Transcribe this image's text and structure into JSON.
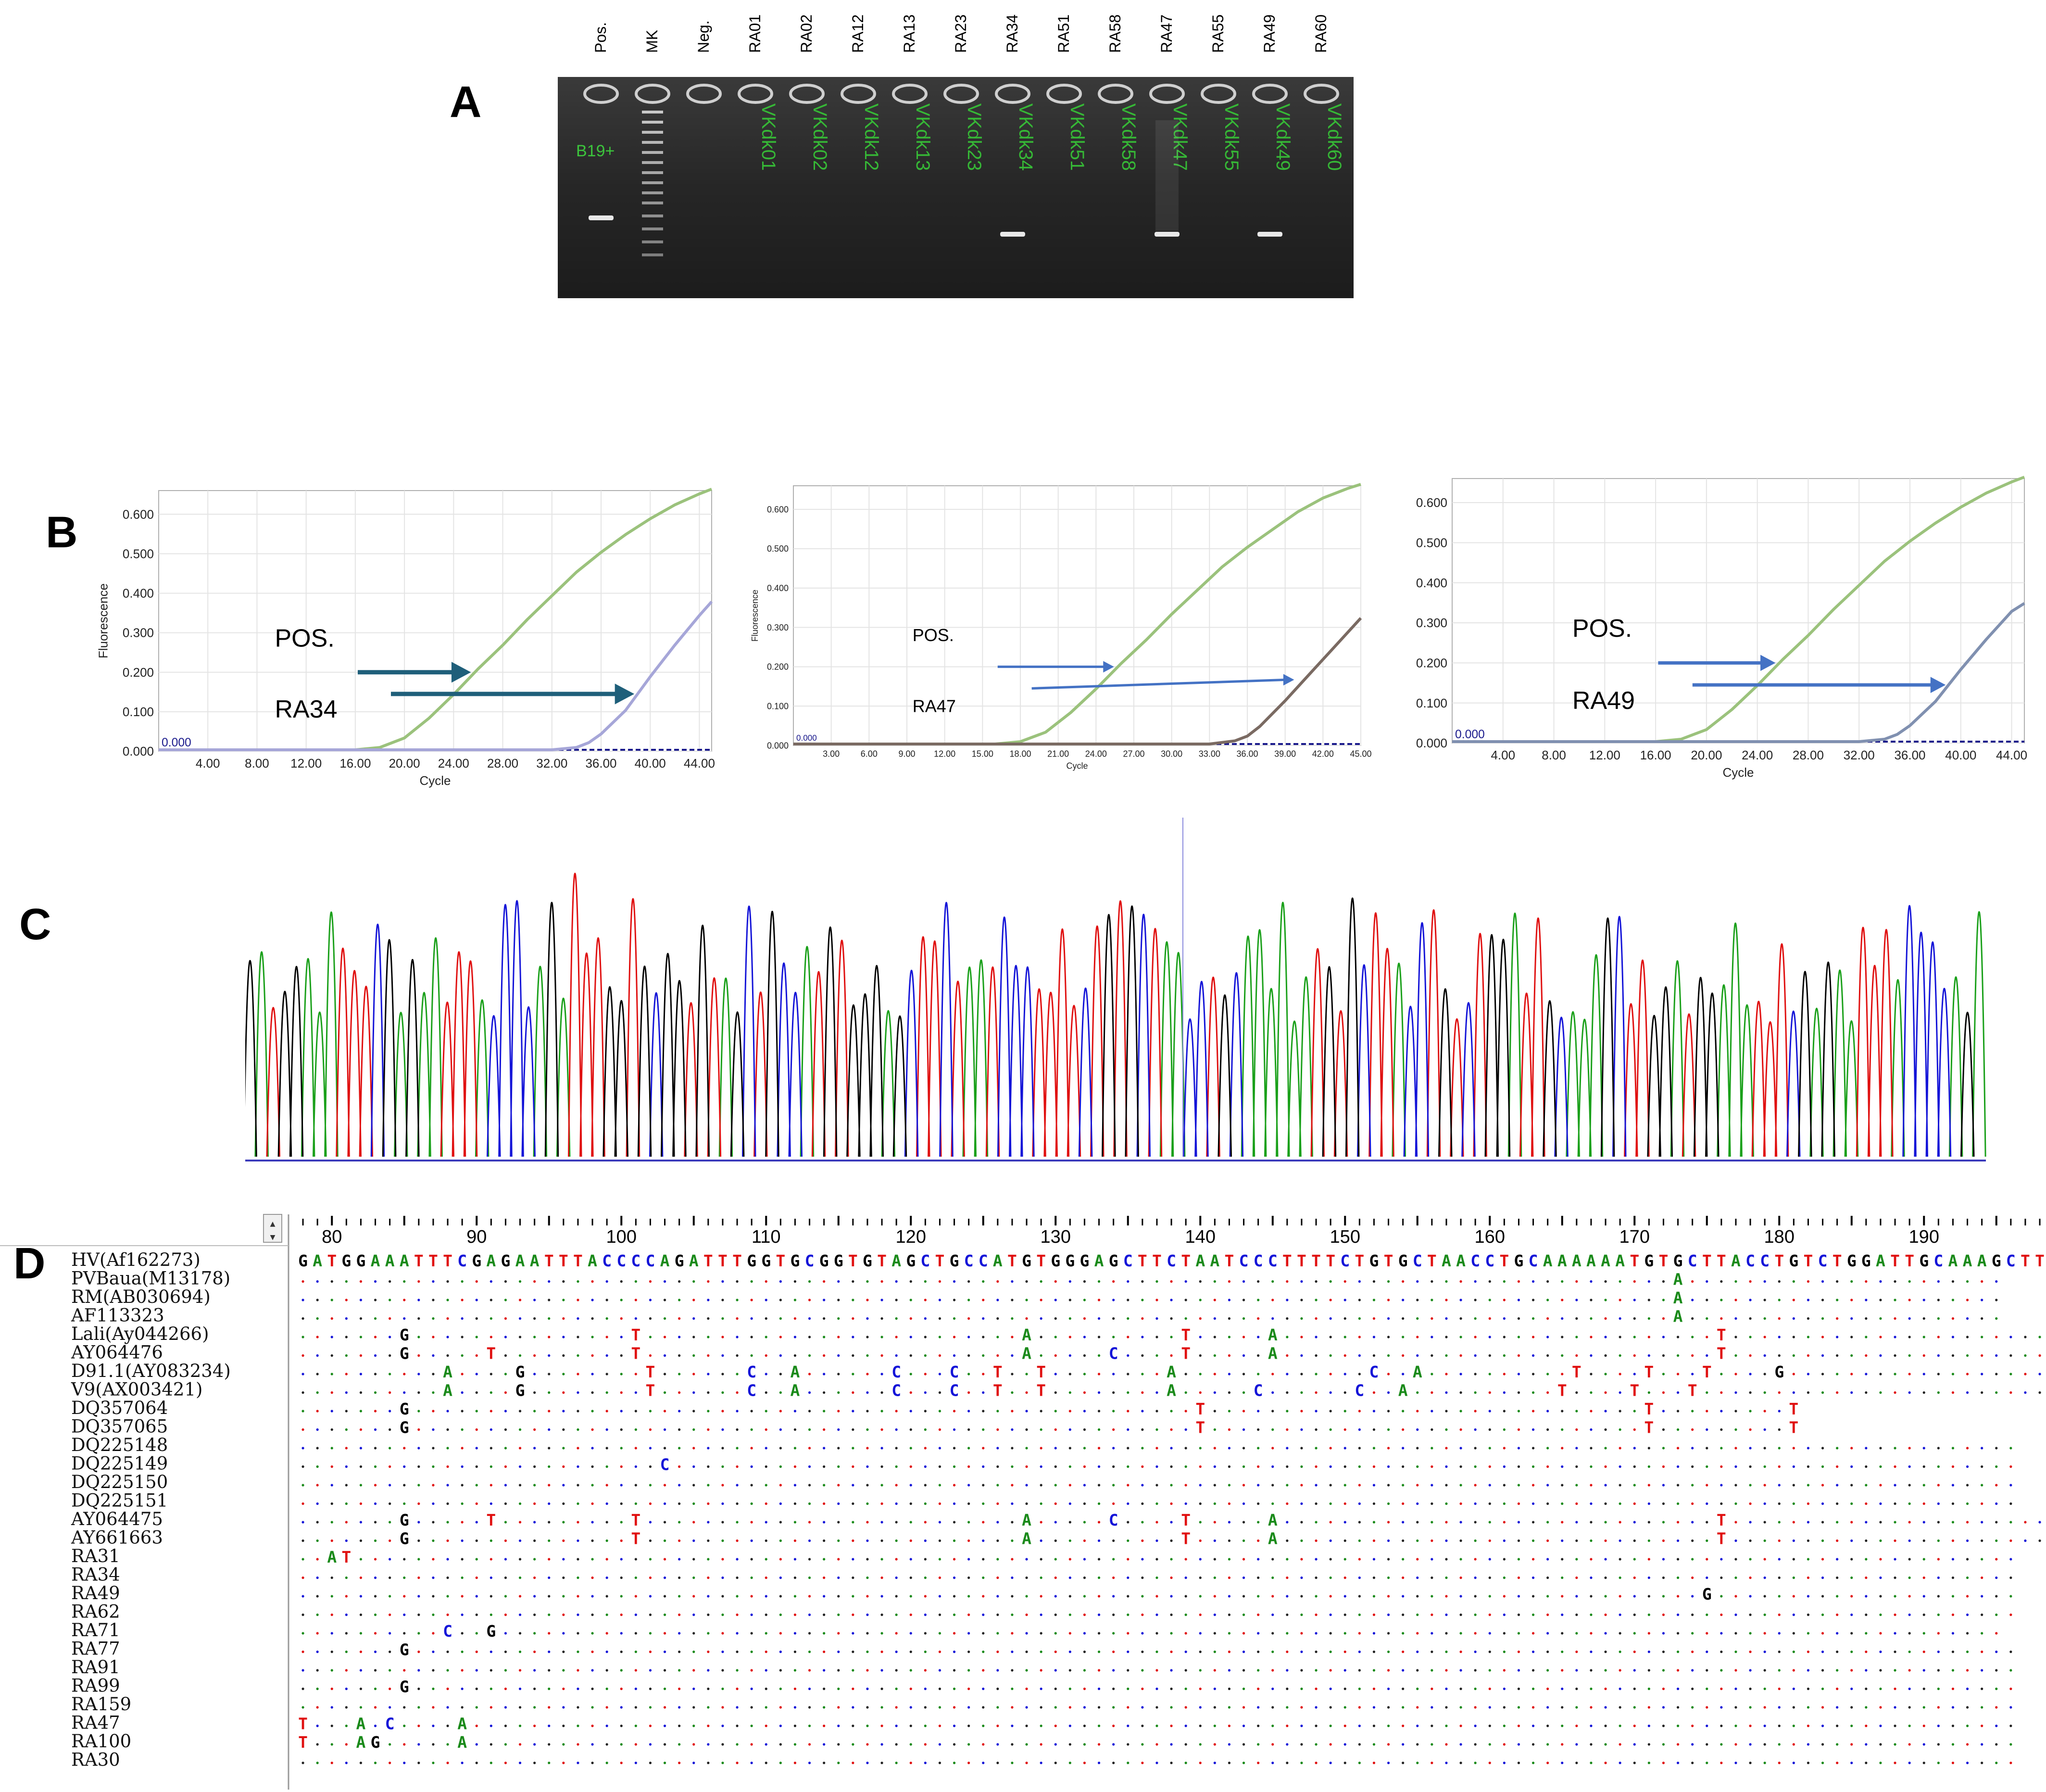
{
  "panels": {
    "a": "A",
    "b": "B",
    "c": "C",
    "d": "D"
  },
  "gel": {
    "lanes": [
      "Pos.",
      "MK",
      "Neg.",
      "RA01",
      "RA02",
      "RA12",
      "RA13",
      "RA23",
      "RA34",
      "RA51",
      "RA58",
      "RA47",
      "RA55",
      "RA49",
      "RA60"
    ],
    "well_labels": [
      "B19+",
      "",
      "",
      "VKdk01",
      "VKdk02",
      "VKdk12",
      "VKdk13",
      "VKdk23",
      "VKdk34",
      "VKdk51",
      "VKdk58",
      "VKdk47",
      "VKdk55",
      "VKdk49",
      "VKdk60"
    ],
    "bands": [
      "Pos.",
      "RA34",
      "RA47",
      "RA49"
    ]
  },
  "chart_data": [
    {
      "type": "line",
      "title": "",
      "xlabel": "Cycle",
      "ylabel": "Fluorescence",
      "x_ticks": [
        "4.00",
        "8.00",
        "12.00",
        "16.00",
        "20.00",
        "24.00",
        "28.00",
        "32.00",
        "36.00",
        "40.00",
        "44.00"
      ],
      "y_ticks": [
        "0.000",
        "0.100",
        "0.200",
        "0.300",
        "0.400",
        "0.500",
        "0.600"
      ],
      "xlim": [
        0,
        45
      ],
      "ylim": [
        0,
        0.66
      ],
      "threshold_label": "0.000",
      "series": [
        {
          "name": "POS.",
          "color": "#9bc27c",
          "x": [
            0,
            16,
            18,
            20,
            22,
            24,
            26,
            28,
            30,
            32,
            34,
            36,
            38,
            40,
            42,
            44,
            45
          ],
          "y": [
            0,
            0,
            0.006,
            0.03,
            0.08,
            0.14,
            0.205,
            0.265,
            0.33,
            0.39,
            0.45,
            0.5,
            0.545,
            0.585,
            0.62,
            0.648,
            0.66
          ]
        },
        {
          "name": "RA34",
          "color": "#a6a6d8",
          "x": [
            0,
            32,
            34,
            35,
            36,
            38,
            40,
            42,
            44,
            45
          ],
          "y": [
            0,
            0,
            0.006,
            0.018,
            0.04,
            0.1,
            0.185,
            0.265,
            0.34,
            0.375
          ]
        }
      ],
      "annotations": [
        "POS.",
        "RA34"
      ],
      "arrow_color": "#1f5f7a"
    },
    {
      "type": "line",
      "title": "",
      "xlabel": "Cycle",
      "ylabel": "Fluorescence",
      "x_ticks": [
        "3.00",
        "6.00",
        "9.00",
        "12.00",
        "15.00",
        "18.00",
        "21.00",
        "24.00",
        "27.00",
        "30.00",
        "33.00",
        "36.00",
        "39.00",
        "42.00",
        "45.00"
      ],
      "y_ticks": [
        "0.000",
        "0.100",
        "0.200",
        "0.300",
        "0.400",
        "0.500",
        "0.600"
      ],
      "xlim": [
        0,
        45
      ],
      "ylim": [
        0,
        0.66
      ],
      "threshold_label": "0.000",
      "series": [
        {
          "name": "POS.",
          "color": "#9bc27c",
          "x": [
            0,
            16,
            18,
            20,
            22,
            24,
            26,
            28,
            30,
            32,
            34,
            36,
            38,
            40,
            42,
            44,
            45
          ],
          "y": [
            0,
            0,
            0.006,
            0.03,
            0.08,
            0.14,
            0.205,
            0.265,
            0.33,
            0.39,
            0.45,
            0.5,
            0.545,
            0.59,
            0.625,
            0.65,
            0.66
          ]
        },
        {
          "name": "RA47",
          "color": "#7a6a62",
          "x": [
            0,
            33,
            35,
            36,
            37,
            39,
            41,
            43,
            45
          ],
          "y": [
            0,
            0,
            0.008,
            0.02,
            0.045,
            0.11,
            0.18,
            0.25,
            0.32
          ]
        }
      ],
      "annotations": [
        "POS.",
        "RA47"
      ],
      "arrow_color": "#4472c4"
    },
    {
      "type": "line",
      "title": "",
      "xlabel": "Cycle",
      "ylabel": "",
      "x_ticks": [
        "4.00",
        "8.00",
        "12.00",
        "16.00",
        "20.00",
        "24.00",
        "28.00",
        "32.00",
        "36.00",
        "40.00",
        "44.00"
      ],
      "y_ticks": [
        "0.000",
        "0.100",
        "0.200",
        "0.300",
        "0.400",
        "0.500",
        "0.600"
      ],
      "xlim": [
        0,
        45
      ],
      "ylim": [
        0,
        0.66
      ],
      "threshold_label": "0.000",
      "series": [
        {
          "name": "POS.",
          "color": "#9bc27c",
          "x": [
            0,
            16,
            18,
            20,
            22,
            24,
            26,
            28,
            30,
            32,
            34,
            36,
            38,
            40,
            42,
            44,
            45
          ],
          "y": [
            0,
            0,
            0.006,
            0.03,
            0.08,
            0.14,
            0.205,
            0.265,
            0.33,
            0.39,
            0.45,
            0.5,
            0.545,
            0.585,
            0.62,
            0.648,
            0.66
          ]
        },
        {
          "name": "RA49",
          "color": "#8090b0",
          "x": [
            0,
            32,
            34,
            35,
            36,
            38,
            40,
            42,
            44,
            45
          ],
          "y": [
            0,
            0,
            0.006,
            0.018,
            0.04,
            0.1,
            0.18,
            0.255,
            0.325,
            0.345
          ]
        }
      ],
      "annotations": [
        "POS.",
        "RA49"
      ],
      "arrow_color": "#4472c4"
    }
  ],
  "alignment": {
    "ruler_start": 78,
    "ruler_labels": [
      "80",
      "90",
      "100",
      "110",
      "120",
      "130",
      "140",
      "150",
      "160",
      "170",
      "180",
      "190"
    ],
    "reference": "GATGGAAATTTCGAGAATTTACCCCAGATTTGGTGCGGTGTAGCTGCCATGTGGGAGCTTCTAATCCCTTTTCTGTGCTAACCTGCAAAAAATGTGCTTACCTGTCTGGATTGCAAAGCTTG",
    "rows": [
      {
        "name": "HV(Af162273)",
        "seq": "GATGGAAATTTCGAGAATTTACCCCAGATTTGGTGCGGTGTAGCTGCCATGTGGGAGCTTCTAATCCCTTTTCTGTGCTAACCTGCAAAAAATGTGCTTACCTGTCTGGATTGCAAAGCTTG"
      },
      {
        "name": "PVBaua(M13178)",
        "seq": "...............................................................................................A......................"
      },
      {
        "name": "RM(AB030694)",
        "seq": "...............................................................................................A......................"
      },
      {
        "name": "AF113323",
        "seq": "...............................................................................................A......................"
      },
      {
        "name": "Lali(Ay044266)",
        "seq": ".......G...............T..........................A..........T.....A..............................T..........................T............T"
      },
      {
        "name": "AY064476",
        "seq": ".......G.....T.........T..........................A.....C....T.....A..............................T..........................T............A...G.T"
      },
      {
        "name": "D91.1(AY083234)",
        "seq": "..........A....G........T......C..A......C...C..T..T........A.............C..A..........T....T...T....G............................A......T"
      },
      {
        "name": "V9(AX003421)",
        "seq": "..........A....G........T......C..A......C...C..T..T........A.....C......C..A..........T....T...T..............................A......T"
      },
      {
        "name": "DQ357064",
        "seq": ".......G......................................................T..............................T.........T"
      },
      {
        "name": "DQ357065",
        "seq": ".......G......................................................T..............................T.........T"
      },
      {
        "name": "DQ225148",
        "seq": "......................................................................................................................."
      },
      {
        "name": "DQ225149",
        "seq": ".........................C............................................................................................."
      },
      {
        "name": "DQ225150",
        "seq": "......................................................................................................................."
      },
      {
        "name": "DQ225151",
        "seq": "......................................................................................................................."
      },
      {
        "name": "AY064475",
        "seq": ".......G.....T.........T..........................A.....C....T.....A..............................T.......................A..T"
      },
      {
        "name": "AY661663",
        "seq": ".......G...............T..........................A..........T.....A..............................T..........................T............T"
      },
      {
        "name": "RA31",
        "seq": "..AT..................................................................................................................."
      },
      {
        "name": "RA34",
        "seq": "......................................................................................................................."
      },
      {
        "name": "RA49",
        "seq": ".................................................................................................G....................."
      },
      {
        "name": "RA62",
        "seq": "......................................................................................................................."
      },
      {
        "name": "RA71",
        "seq": "..........C..G........................................................................................................"
      },
      {
        "name": "RA77",
        "seq": ".......G..............................................................................................................."
      },
      {
        "name": "RA91",
        "seq": "......................................................................................................................."
      },
      {
        "name": "RA99",
        "seq": ".......G..............................................................................................................."
      },
      {
        "name": "RA159",
        "seq": "......................................................................................................................."
      },
      {
        "name": "RA47",
        "seq": "T...A.C....A..........................................................................................................."
      },
      {
        "name": "RA100",
        "seq": "T...AG.....A..........................................................................................................."
      },
      {
        "name": "RA30",
        "seq": "......................................................................................................................."
      }
    ]
  },
  "colors": {
    "A": "#1a8a1a",
    "T": "#e01010",
    "C": "#1414d8",
    "G": "#000000",
    "dot_green": "#1a8a1a",
    "dot_red": "#e01010",
    "dot_blue": "#1414d8",
    "dot_black": "#222222"
  }
}
